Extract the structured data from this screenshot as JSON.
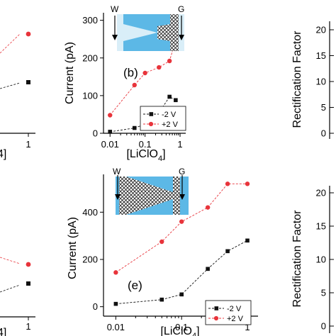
{
  "colors": {
    "black_series": "#111111",
    "red_series": "#e8343b",
    "channel_blue": "#5cb8e6",
    "channel_light": "#d9eef8"
  },
  "right_panels": {
    "ylabel": "Rectification Factor",
    "top_ticks": [
      "20",
      "15",
      "10",
      "5",
      "0"
    ],
    "bottom_ticks": [
      "20",
      "15",
      "10",
      "5",
      "0"
    ]
  },
  "left_panels": {
    "top_tick": "1",
    "bottom_tick": "1",
    "top_xlabel_fragment": "4]",
    "bottom_xlabel_fragment": "4]"
  },
  "insets": {
    "top": {
      "left_label": "W",
      "right_label": "G"
    },
    "bottom": {
      "left_label": "W",
      "right_label": "G"
    }
  },
  "chart_data": [
    {
      "type": "line",
      "panel_label": "(b)",
      "xlabel": "[LiClO",
      "xlabel_sub": "4",
      "xlabel_close": "]",
      "ylabel": "Current (pA)",
      "xscale": "log",
      "xlim": [
        0.0065,
        1.45
      ],
      "ylim": [
        0,
        320
      ],
      "xticks": [
        "0.01",
        "0.1",
        "1"
      ],
      "yticks": [
        "0",
        "100",
        "200",
        "300"
      ],
      "legend_position": "bottom-right",
      "series": [
        {
          "name": "-2 V",
          "x": [
            0.01,
            0.05,
            0.1,
            0.25,
            0.5,
            0.75
          ],
          "y": [
            4,
            14,
            24,
            55,
            97,
            88
          ]
        },
        {
          "name": "+2 V",
          "x": [
            0.01,
            0.05,
            0.1,
            0.25,
            0.5,
            1.0
          ],
          "y": [
            48,
            128,
            160,
            175,
            192,
            288
          ]
        }
      ]
    },
    {
      "type": "line",
      "panel_label": "(e)",
      "xlabel": "[LiClO",
      "xlabel_sub": "4",
      "xlabel_close": "]",
      "ylabel": "Current (pA)",
      "xscale": "log",
      "xlim": [
        0.0065,
        1.45
      ],
      "ylim": [
        -40,
        560
      ],
      "xticks": [
        "0.01",
        "0.1",
        "1"
      ],
      "yticks": [
        "0",
        "200",
        "400"
      ],
      "legend_position": "bottom-right",
      "series": [
        {
          "name": "-2 V",
          "x": [
            0.01,
            0.05,
            0.1,
            0.25,
            0.5,
            1.0
          ],
          "y": [
            12,
            30,
            52,
            160,
            235,
            280
          ]
        },
        {
          "name": "+2 V",
          "x": [
            0.01,
            0.05,
            0.1,
            0.25,
            0.5,
            1.0
          ],
          "y": [
            145,
            275,
            360,
            420,
            520,
            520
          ]
        }
      ]
    }
  ]
}
